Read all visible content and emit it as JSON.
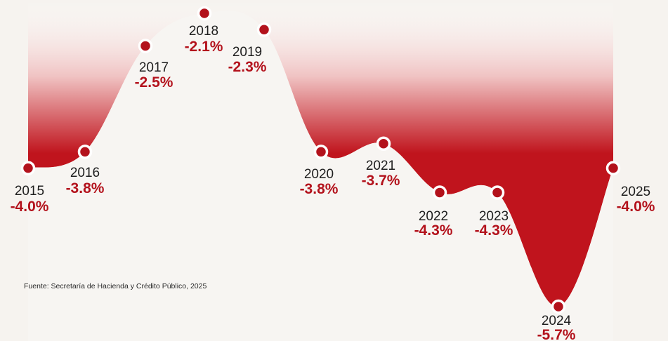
{
  "chart_data": {
    "type": "area",
    "x": [
      "2015",
      "2016",
      "2017",
      "2018",
      "2019",
      "2020",
      "2021",
      "2022",
      "2023",
      "2024",
      "2025"
    ],
    "series": [
      {
        "values": [
          -4.0,
          -3.8,
          -2.5,
          -2.1,
          -2.3,
          -3.8,
          -3.7,
          -4.3,
          -4.3,
          -5.7,
          -4.0
        ],
        "labels": [
          "-4.0%",
          "-3.8%",
          "-2.5%",
          "-2.1%",
          "-2.3%",
          "-3.8%",
          "-3.7%",
          "-4.3%",
          "-4.3%",
          "-5.7%",
          "-4.0%"
        ]
      }
    ],
    "source": "Fuente: Secretaría de Hacienda y Crédito Público, 2025",
    "colors": {
      "fill_dark": "#c0141d",
      "fill_light": "#ffffff",
      "marker": "#b3121c",
      "value_text": "#b3121c",
      "year_text": "#1e1e1e"
    },
    "grid": false,
    "legend": "none"
  }
}
